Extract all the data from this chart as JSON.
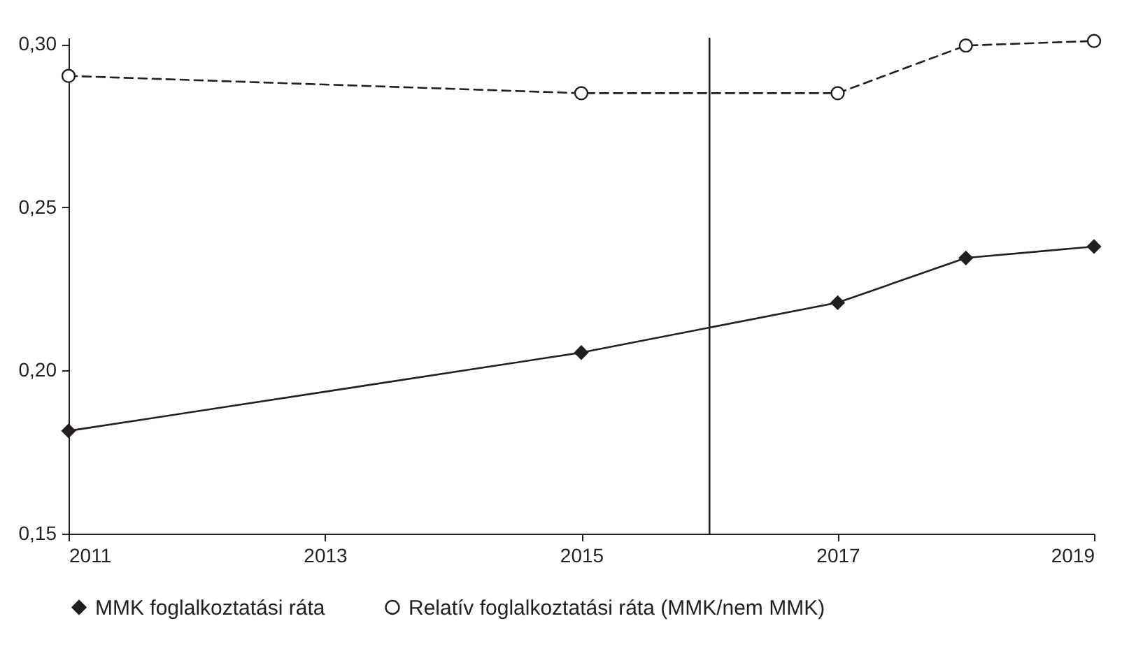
{
  "chart_data": {
    "type": "line",
    "x": [
      2011,
      2015,
      2017,
      2018,
      2019
    ],
    "xlim": [
      2011,
      2019
    ],
    "xticks": [
      2011,
      2013,
      2015,
      2017,
      2019
    ],
    "ylim": [
      0.15,
      0.302
    ],
    "yticks": [
      {
        "value": 0.15,
        "label": "0,15"
      },
      {
        "value": 0.2,
        "label": "0,20"
      },
      {
        "value": 0.25,
        "label": "0,25"
      },
      {
        "value": 0.3,
        "label": "0,30"
      }
    ],
    "series": [
      {
        "name": "MMK foglalkoztatási ráta",
        "color": "#231f20",
        "marker": "diamond",
        "line_style": "solid",
        "values": [
          0.1815,
          0.2055,
          0.2208,
          0.2345,
          0.238
        ]
      },
      {
        "name": "Relatív foglalkoztatási ráta (MMK/nem MMK)",
        "color": "#231f20",
        "marker": "circle",
        "line_style": "dashed",
        "values": [
          0.2903,
          0.285,
          0.285,
          0.2996,
          0.301
        ]
      }
    ],
    "ref_lines": [
      {
        "axis": "x",
        "value": 2016,
        "color": "#231f20"
      }
    ],
    "grid": false,
    "legend": "bottom"
  }
}
